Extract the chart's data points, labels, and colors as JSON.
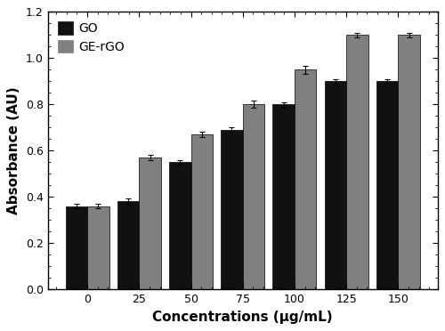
{
  "categories": [
    0,
    25,
    50,
    75,
    100,
    125,
    150
  ],
  "go_values": [
    0.36,
    0.38,
    0.55,
    0.69,
    0.8,
    0.9,
    0.9
  ],
  "gergo_values": [
    0.36,
    0.57,
    0.67,
    0.8,
    0.95,
    1.1,
    1.1
  ],
  "go_errors": [
    0.01,
    0.012,
    0.01,
    0.01,
    0.01,
    0.01,
    0.01
  ],
  "gergo_errors": [
    0.01,
    0.01,
    0.012,
    0.015,
    0.018,
    0.01,
    0.01
  ],
  "go_color": "#111111",
  "gergo_color": "#808080",
  "bar_width": 0.42,
  "xlabel": "Concentrations (μg/mL)",
  "ylabel": "Absorbance (AU)",
  "ylim": [
    0,
    1.2
  ],
  "yticks": [
    0,
    0.2,
    0.4,
    0.6,
    0.8,
    1.0,
    1.2
  ],
  "legend_go": "GO",
  "legend_gergo": "GE-rGO",
  "background_color": "#ffffff",
  "edge_color": "#000000",
  "figsize": [
    5.0,
    3.72
  ],
  "dpi": 100
}
